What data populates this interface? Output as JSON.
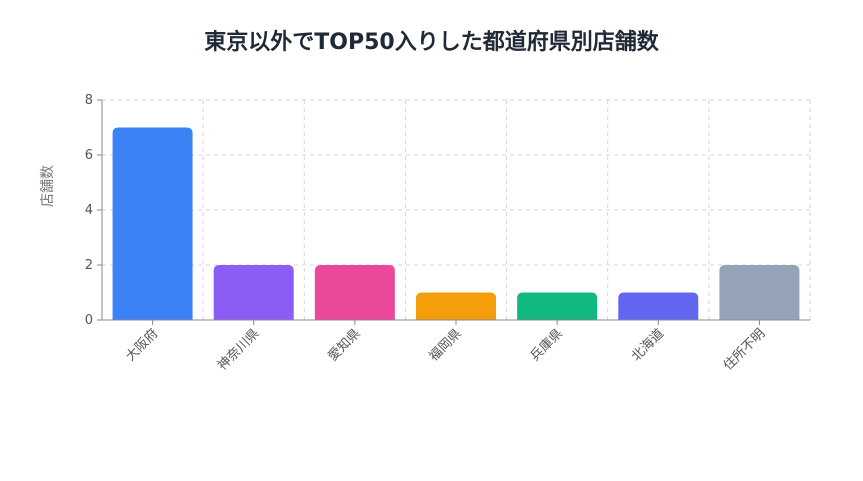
{
  "chart_data": {
    "type": "bar",
    "title": "東京以外でTOP50入りした都道府県別店舗数",
    "ylabel": "店舗数",
    "xlabel": "",
    "categories": [
      "大阪府",
      "神奈川県",
      "愛知県",
      "福岡県",
      "兵庫県",
      "北海道",
      "住所不明"
    ],
    "values": [
      7,
      2,
      2,
      1,
      1,
      1,
      2
    ],
    "colors": [
      "#3b82f6",
      "#8b5cf6",
      "#ec4899",
      "#f59e0b",
      "#10b981",
      "#6366f1",
      "#94a3b8"
    ],
    "ylim": [
      0,
      8
    ],
    "yticks": [
      0,
      2,
      4,
      6,
      8
    ],
    "grid": true,
    "legend": "none"
  }
}
